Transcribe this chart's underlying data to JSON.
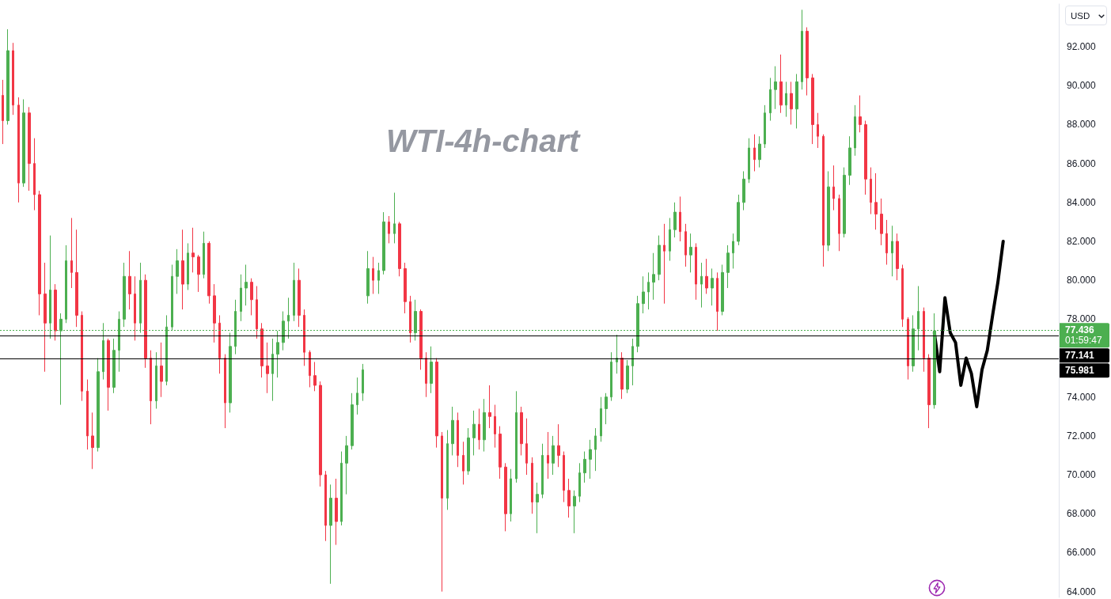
{
  "chart_data": {
    "type": "candlestick",
    "title": "WTI-4h-chart",
    "ylabel": "USD",
    "categories": [
      null,
      null,
      null,
      null,
      null,
      null,
      null,
      null,
      null,
      null,
      null,
      null,
      null,
      null,
      null,
      null,
      null,
      null,
      null,
      null,
      null,
      null,
      null,
      null,
      null,
      null,
      null,
      null,
      null,
      null,
      null,
      null,
      null,
      null,
      null,
      null,
      null,
      null,
      null,
      null,
      null,
      null,
      null,
      null,
      null,
      null,
      null,
      null,
      null,
      null,
      null,
      null,
      null,
      null,
      null,
      null,
      null,
      null,
      null,
      null,
      null,
      null,
      null,
      null,
      null,
      null,
      null,
      null,
      null,
      null,
      null,
      null,
      null,
      null,
      null,
      null,
      null,
      null,
      null,
      null,
      null,
      null,
      null,
      null,
      null,
      null,
      null,
      null,
      null,
      null,
      null,
      null,
      null,
      null,
      null,
      null,
      null,
      null,
      null,
      null,
      null,
      null,
      null,
      null,
      null,
      null,
      null,
      null,
      null,
      null,
      null,
      null,
      null,
      null,
      null,
      null,
      null,
      null,
      null,
      null,
      null,
      null,
      null,
      null,
      null,
      null,
      null,
      null,
      null,
      null,
      null,
      null,
      null,
      null,
      null,
      null,
      null,
      null,
      null,
      null,
      null,
      null,
      null,
      null,
      null,
      null,
      null,
      null,
      null,
      null,
      null,
      null,
      null,
      null,
      null,
      null,
      null,
      null,
      null,
      null,
      null,
      null,
      null,
      null,
      null,
      null,
      null,
      null,
      null,
      null,
      null,
      null,
      null,
      null,
      null,
      null,
      null,
      null,
      null,
      null,
      null,
      null,
      null,
      null,
      null,
      null,
      null,
      null,
      null,
      null,
      null,
      null,
      null,
      null,
      null,
      null,
      null,
      null,
      null,
      null
    ],
    "ohlc": [
      [
        89.5,
        90.3,
        87.0,
        88.2
      ],
      [
        88.2,
        92.9,
        88.0,
        91.8
      ],
      [
        91.8,
        92.2,
        88.5,
        89.0
      ],
      [
        89.0,
        89.4,
        84.0,
        85.0
      ],
      [
        85.0,
        89.3,
        84.8,
        88.6
      ],
      [
        88.6,
        88.9,
        84.6,
        86.0
      ],
      [
        86.0,
        87.3,
        83.6,
        84.4
      ],
      [
        84.4,
        84.6,
        78.2,
        79.3
      ],
      [
        79.3,
        80.9,
        75.3,
        77.8
      ],
      [
        77.8,
        82.3,
        77.0,
        79.5
      ],
      [
        79.5,
        79.8,
        76.9,
        77.4
      ],
      [
        77.4,
        78.3,
        73.6,
        78.0
      ],
      [
        78.0,
        81.8,
        77.8,
        81.0
      ],
      [
        81.0,
        83.2,
        79.6,
        80.4
      ],
      [
        80.4,
        82.6,
        77.6,
        78.2
      ],
      [
        78.2,
        78.4,
        73.8,
        74.3
      ],
      [
        74.3,
        74.9,
        71.3,
        72.0
      ],
      [
        72.0,
        73.2,
        70.3,
        71.4
      ],
      [
        71.4,
        76.0,
        71.2,
        75.3
      ],
      [
        75.3,
        77.8,
        74.9,
        76.9
      ],
      [
        76.9,
        77.0,
        73.3,
        74.5
      ],
      [
        74.5,
        77.0,
        74.2,
        76.4
      ],
      [
        76.4,
        78.4,
        75.3,
        78.0
      ],
      [
        78.0,
        80.9,
        77.6,
        80.2
      ],
      [
        80.2,
        81.5,
        78.5,
        79.3
      ],
      [
        79.3,
        80.2,
        76.9,
        77.8
      ],
      [
        77.8,
        80.9,
        77.3,
        80.0
      ],
      [
        80.0,
        80.3,
        75.5,
        76.0
      ],
      [
        76.0,
        76.4,
        72.6,
        73.8
      ],
      [
        73.8,
        76.3,
        73.4,
        75.6
      ],
      [
        75.6,
        76.8,
        74.0,
        74.8
      ],
      [
        74.8,
        78.2,
        74.6,
        77.6
      ],
      [
        77.6,
        80.8,
        77.4,
        80.2
      ],
      [
        80.2,
        81.6,
        79.3,
        81.0
      ],
      [
        81.0,
        82.6,
        78.5,
        79.8
      ],
      [
        79.8,
        81.9,
        79.5,
        81.4
      ],
      [
        81.4,
        82.7,
        80.4,
        81.2
      ],
      [
        81.2,
        81.3,
        79.4,
        80.3
      ],
      [
        80.3,
        82.5,
        80.1,
        81.9
      ],
      [
        81.9,
        82.0,
        78.8,
        79.2
      ],
      [
        79.2,
        79.8,
        76.8,
        77.8
      ],
      [
        77.8,
        78.2,
        75.2,
        76.0
      ],
      [
        76.0,
        76.2,
        72.4,
        73.7
      ],
      [
        73.7,
        77.3,
        73.2,
        76.6
      ],
      [
        76.6,
        79.0,
        76.2,
        78.4
      ],
      [
        78.4,
        80.3,
        77.9,
        79.6
      ],
      [
        79.6,
        80.8,
        78.7,
        79.9
      ],
      [
        79.9,
        80.1,
        78.2,
        79.0
      ],
      [
        79.0,
        79.7,
        77.0,
        77.5
      ],
      [
        77.5,
        77.8,
        75.0,
        75.6
      ],
      [
        75.6,
        76.8,
        74.2,
        75.2
      ],
      [
        75.2,
        77.0,
        73.8,
        76.2
      ],
      [
        76.2,
        77.4,
        75.0,
        76.8
      ],
      [
        76.8,
        78.4,
        76.4,
        77.9
      ],
      [
        77.9,
        79.1,
        77.0,
        78.2
      ],
      [
        78.2,
        80.9,
        77.9,
        80.0
      ],
      [
        80.0,
        80.6,
        77.6,
        78.2
      ],
      [
        78.2,
        78.5,
        75.6,
        76.3
      ],
      [
        76.3,
        76.4,
        74.5,
        75.1
      ],
      [
        75.1,
        75.8,
        74.3,
        74.6
      ],
      [
        74.6,
        74.8,
        69.4,
        70.0
      ],
      [
        70.0,
        70.2,
        66.6,
        67.4
      ],
      [
        67.4,
        69.5,
        64.4,
        68.8
      ],
      [
        68.8,
        69.8,
        66.4,
        67.6
      ],
      [
        67.6,
        71.2,
        67.4,
        70.6
      ],
      [
        70.6,
        72.0,
        69.0,
        71.5
      ],
      [
        71.5,
        74.2,
        71.3,
        73.6
      ],
      [
        73.6,
        75.0,
        73.1,
        74.2
      ],
      [
        74.2,
        75.7,
        73.8,
        75.4
      ],
      [
        79.2,
        81.5,
        78.8,
        80.6
      ],
      [
        80.6,
        81.2,
        79.3,
        80.0
      ],
      [
        80.0,
        80.9,
        79.3,
        80.5
      ],
      [
        80.5,
        83.5,
        80.3,
        83.0
      ],
      [
        83.0,
        83.3,
        81.9,
        82.4
      ],
      [
        82.4,
        84.5,
        81.9,
        82.9
      ],
      [
        82.9,
        83.0,
        80.2,
        80.6
      ],
      [
        80.6,
        80.9,
        78.3,
        78.9
      ],
      [
        78.9,
        79.2,
        76.8,
        77.3
      ],
      [
        77.3,
        79.0,
        76.9,
        78.4
      ],
      [
        78.4,
        78.5,
        75.4,
        76.0
      ],
      [
        76.0,
        76.3,
        74.0,
        74.7
      ],
      [
        74.7,
        76.6,
        74.2,
        75.8
      ],
      [
        75.8,
        76.0,
        71.4,
        72.0
      ],
      [
        72.0,
        72.2,
        64.0,
        68.8
      ],
      [
        68.8,
        72.3,
        68.2,
        71.6
      ],
      [
        71.6,
        73.5,
        71.0,
        72.8
      ],
      [
        72.8,
        73.2,
        70.4,
        71.0
      ],
      [
        71.0,
        71.7,
        69.5,
        70.2
      ],
      [
        70.2,
        72.4,
        70.0,
        71.9
      ],
      [
        71.9,
        73.3,
        71.0,
        72.6
      ],
      [
        72.6,
        73.4,
        71.3,
        71.8
      ],
      [
        71.8,
        73.9,
        71.2,
        73.2
      ],
      [
        73.2,
        74.6,
        72.4,
        73.0
      ],
      [
        73.0,
        73.6,
        71.4,
        72.1
      ],
      [
        72.1,
        72.5,
        69.8,
        70.4
      ],
      [
        70.4,
        70.6,
        67.1,
        68.0
      ],
      [
        68.0,
        70.3,
        67.6,
        69.8
      ],
      [
        69.8,
        74.3,
        69.6,
        73.2
      ],
      [
        73.2,
        73.5,
        71.0,
        71.6
      ],
      [
        71.6,
        72.9,
        70.0,
        70.6
      ],
      [
        70.6,
        70.9,
        68.0,
        68.6
      ],
      [
        68.6,
        69.6,
        67.0,
        69.0
      ],
      [
        69.0,
        71.6,
        68.8,
        71.0
      ],
      [
        71.0,
        72.2,
        69.8,
        70.6
      ],
      [
        70.6,
        72.0,
        70.0,
        71.5
      ],
      [
        71.5,
        72.6,
        70.4,
        71.0
      ],
      [
        71.0,
        71.2,
        68.6,
        69.2
      ],
      [
        69.2,
        69.8,
        67.8,
        68.4
      ],
      [
        68.4,
        69.2,
        67.0,
        68.9
      ],
      [
        68.9,
        70.6,
        68.6,
        70.1
      ],
      [
        70.1,
        71.2,
        69.6,
        70.8
      ],
      [
        70.8,
        71.8,
        69.8,
        71.3
      ],
      [
        71.3,
        72.4,
        70.2,
        72.0
      ],
      [
        72.0,
        74.0,
        71.7,
        73.4
      ],
      [
        73.4,
        74.2,
        72.6,
        74.0
      ],
      [
        74.0,
        76.3,
        73.8,
        75.8
      ],
      [
        75.8,
        77.2,
        75.2,
        76.0
      ],
      [
        76.0,
        76.3,
        73.9,
        74.4
      ],
      [
        74.4,
        75.9,
        74.2,
        75.6
      ],
      [
        75.6,
        77.0,
        74.6,
        76.6
      ],
      [
        76.6,
        79.2,
        76.3,
        78.8
      ],
      [
        78.8,
        80.2,
        78.3,
        79.4
      ],
      [
        79.4,
        80.4,
        78.5,
        79.9
      ],
      [
        79.9,
        81.4,
        79.0,
        80.3
      ],
      [
        80.3,
        82.3,
        80.0,
        81.8
      ],
      [
        81.8,
        82.9,
        78.8,
        81.5
      ],
      [
        81.5,
        83.2,
        81.0,
        82.6
      ],
      [
        82.6,
        84.0,
        82.2,
        83.5
      ],
      [
        83.5,
        84.3,
        82.0,
        82.5
      ],
      [
        82.5,
        82.9,
        80.7,
        81.3
      ],
      [
        81.3,
        82.4,
        80.4,
        81.7
      ],
      [
        81.7,
        81.9,
        79.0,
        79.8
      ],
      [
        79.8,
        80.9,
        78.6,
        80.2
      ],
      [
        80.2,
        81.1,
        79.3,
        79.6
      ],
      [
        79.6,
        80.6,
        78.7,
        80.1
      ],
      [
        80.1,
        80.4,
        77.4,
        78.4
      ],
      [
        78.4,
        80.8,
        78.2,
        80.4
      ],
      [
        80.4,
        81.8,
        79.6,
        81.4
      ],
      [
        81.4,
        82.4,
        80.6,
        82.0
      ],
      [
        82.0,
        84.4,
        81.8,
        84.0
      ],
      [
        84.0,
        85.6,
        83.6,
        85.2
      ],
      [
        85.2,
        87.3,
        85.0,
        86.8
      ],
      [
        86.8,
        87.5,
        85.6,
        86.2
      ],
      [
        86.2,
        87.4,
        85.8,
        87.0
      ],
      [
        87.0,
        89.0,
        86.8,
        88.6
      ],
      [
        88.6,
        90.4,
        88.2,
        89.8
      ],
      [
        89.8,
        91.0,
        88.8,
        90.2
      ],
      [
        90.2,
        91.6,
        88.6,
        89.0
      ],
      [
        89.0,
        90.2,
        88.4,
        89.6
      ],
      [
        89.6,
        90.2,
        88.0,
        88.8
      ],
      [
        88.8,
        90.6,
        87.8,
        90.2
      ],
      [
        90.2,
        93.9,
        89.8,
        92.8
      ],
      [
        92.8,
        93.0,
        89.5,
        90.4
      ],
      [
        90.4,
        90.6,
        87.0,
        88.0
      ],
      [
        88.0,
        88.6,
        86.8,
        87.4
      ],
      [
        87.4,
        87.5,
        80.7,
        81.8
      ],
      [
        81.8,
        85.6,
        81.5,
        84.8
      ],
      [
        84.8,
        85.9,
        83.6,
        84.2
      ],
      [
        84.2,
        84.4,
        81.5,
        82.4
      ],
      [
        82.4,
        85.8,
        82.2,
        85.4
      ],
      [
        85.4,
        87.4,
        84.9,
        86.8
      ],
      [
        86.8,
        89.0,
        86.4,
        88.4
      ],
      [
        88.4,
        89.5,
        87.6,
        88.0
      ],
      [
        88.0,
        88.2,
        84.4,
        85.2
      ],
      [
        85.2,
        85.8,
        83.4,
        84.0
      ],
      [
        84.0,
        85.5,
        82.6,
        83.4
      ],
      [
        83.4,
        84.2,
        81.8,
        82.4
      ],
      [
        82.4,
        83.1,
        80.8,
        81.4
      ],
      [
        81.4,
        82.8,
        80.2,
        82.0
      ],
      [
        82.0,
        82.4,
        80.0,
        80.6
      ],
      [
        80.6,
        80.8,
        77.6,
        78.0
      ],
      [
        78.0,
        78.1,
        74.9,
        75.6
      ],
      [
        75.6,
        78.2,
        75.3,
        77.5
      ],
      [
        77.5,
        79.7,
        76.4,
        78.4
      ],
      [
        78.4,
        78.6,
        75.3,
        76.0
      ],
      [
        76.0,
        76.2,
        72.4,
        73.6
      ],
      [
        73.6,
        78.3,
        73.4,
        77.4
      ],
      null,
      null,
      null,
      null,
      null,
      null,
      null,
      null,
      null,
      null,
      null,
      null,
      null,
      null,
      null,
      null,
      null,
      null,
      null,
      null,
      null,
      null,
      null
    ],
    "colors": [
      "#f23645",
      "#4caf50",
      "#f23645",
      "#f23645",
      "#4caf50",
      "#f23645",
      "#f23645",
      "#f23645",
      "#f23645",
      "#4caf50",
      "#f23645",
      "#4caf50",
      "#4caf50",
      "#f23645",
      "#f23645",
      "#f23645",
      "#f23645",
      "#f23645",
      "#4caf50",
      "#4caf50",
      "#f23645",
      "#4caf50",
      "#4caf50",
      "#4caf50",
      "#f23645",
      "#f23645",
      "#4caf50",
      "#f23645",
      "#f23645",
      "#4caf50",
      "#f23645",
      "#4caf50",
      "#4caf50",
      "#4caf50",
      "#f23645",
      "#4caf50",
      "#f23645",
      "#f23645",
      "#4caf50",
      "#f23645",
      "#f23645",
      "#f23645",
      "#f23645",
      "#4caf50",
      "#4caf50",
      "#4caf50",
      "#4caf50",
      "#f23645",
      "#f23645",
      "#f23645",
      "#f23645",
      "#4caf50",
      "#4caf50",
      "#4caf50",
      "#4caf50",
      "#4caf50",
      "#f23645",
      "#f23645",
      "#f23645",
      "#f23645",
      "#f23645",
      "#f23645",
      "#4caf50",
      "#f23645",
      "#4caf50",
      "#4caf50",
      "#4caf50",
      "#4caf50",
      "#4caf50",
      "#4caf50",
      "#f23645",
      "#4caf50",
      "#4caf50",
      "#f23645",
      "#4caf50",
      "#f23645",
      "#f23645",
      "#f23645",
      "#4caf50",
      "#f23645",
      "#f23645",
      "#4caf50",
      "#f23645",
      "#f23645",
      "#4caf50",
      "#4caf50",
      "#f23645",
      "#f23645",
      "#4caf50",
      "#4caf50",
      "#f23645",
      "#4caf50",
      "#f23645",
      "#f23645",
      "#f23645",
      "#f23645",
      "#4caf50",
      "#4caf50",
      "#f23645",
      "#f23645",
      "#f23645",
      "#4caf50",
      "#4caf50",
      "#f23645",
      "#4caf50",
      "#f23645",
      "#f23645",
      "#f23645",
      "#4caf50",
      "#4caf50",
      "#4caf50",
      "#4caf50",
      "#4caf50",
      "#4caf50",
      "#4caf50",
      "#4caf50",
      "#4caf50",
      "#f23645",
      "#4caf50",
      "#4caf50",
      "#4caf50",
      "#4caf50",
      "#4caf50",
      "#4caf50",
      "#4caf50",
      "#f23645",
      "#4caf50",
      "#4caf50",
      "#f23645",
      "#f23645",
      "#4caf50",
      "#f23645",
      "#4caf50",
      "#f23645",
      "#4caf50",
      "#f23645",
      "#4caf50",
      "#4caf50",
      "#4caf50",
      "#4caf50",
      "#4caf50",
      "#4caf50",
      "#f23645",
      "#4caf50",
      "#4caf50",
      "#4caf50",
      "#4caf50",
      "#f23645",
      "#4caf50",
      "#f23645",
      "#4caf50",
      "#4caf50",
      "#f23645",
      "#f23645",
      "#f23645",
      "#f23645",
      "#4caf50",
      "#f23645",
      "#f23645",
      "#4caf50",
      "#4caf50",
      "#4caf50",
      "#f23645",
      "#f23645",
      "#f23645",
      "#f23645",
      "#f23645",
      "#f23645",
      "#4caf50",
      "#f23645",
      "#f23645",
      "#f23645",
      "#4caf50",
      "#4caf50",
      "#f23645",
      "#f23645",
      "#4caf50",
      null,
      null,
      null,
      null,
      null,
      null,
      null,
      null,
      null,
      null,
      null,
      null,
      null,
      null,
      null,
      null,
      null,
      null,
      null,
      null,
      null,
      null,
      null
    ],
    "series": [
      {
        "type": "line",
        "color": "#000000",
        "values": [
          null,
          null,
          null,
          null,
          null,
          null,
          null,
          null,
          null,
          null,
          null,
          null,
          null,
          null,
          null,
          null,
          null,
          null,
          null,
          null,
          null,
          null,
          null,
          null,
          null,
          null,
          null,
          null,
          null,
          null,
          null,
          null,
          null,
          null,
          null,
          null,
          null,
          null,
          null,
          null,
          null,
          null,
          null,
          null,
          null,
          null,
          null,
          null,
          null,
          null,
          null,
          null,
          null,
          null,
          null,
          null,
          null,
          null,
          null,
          null,
          null,
          null,
          null,
          null,
          null,
          null,
          null,
          null,
          null,
          null,
          null,
          null,
          null,
          null,
          null,
          null,
          null,
          null,
          null,
          null,
          null,
          null,
          null,
          null,
          null,
          null,
          null,
          null,
          null,
          null,
          null,
          null,
          null,
          null,
          null,
          null,
          null,
          null,
          null,
          null,
          null,
          null,
          null,
          null,
          null,
          null,
          null,
          null,
          null,
          null,
          null,
          null,
          null,
          null,
          null,
          null,
          null,
          null,
          null,
          null,
          null,
          null,
          null,
          null,
          null,
          null,
          null,
          null,
          null,
          null,
          null,
          null,
          null,
          null,
          null,
          null,
          null,
          null,
          null,
          null,
          null,
          null,
          null,
          null,
          null,
          null,
          null,
          null,
          null,
          null,
          null,
          null,
          null,
          null,
          null,
          null,
          null,
          null,
          null,
          null,
          null,
          null,
          null,
          null,
          null,
          null,
          null,
          null,
          null,
          null,
          null,
          null,
          null,
          null,
          null,
          null,
          77.3,
          75.3,
          79.1,
          77.3,
          76.8,
          74.6,
          76.0,
          75.2,
          73.5,
          75.4,
          76.4,
          78.2,
          79.9,
          82.0,
          null,
          null,
          null,
          null,
          null,
          null,
          null,
          null,
          null,
          null
        ]
      }
    ],
    "ylim": [
      63.7,
      94.2
    ],
    "yticks": [
      {
        "value": 64,
        "label": "64.000"
      },
      {
        "value": 66,
        "label": "66.000"
      },
      {
        "value": 68,
        "label": "68.000"
      },
      {
        "value": 70,
        "label": "70.000"
      },
      {
        "value": 72,
        "label": "72.000"
      },
      {
        "value": 74,
        "label": "74.000"
      },
      {
        "value": 78,
        "label": "78.000"
      },
      {
        "value": 80,
        "label": "80.000"
      },
      {
        "value": 82,
        "label": "82.000"
      },
      {
        "value": 84,
        "label": "84.000"
      },
      {
        "value": 86,
        "label": "86.000"
      },
      {
        "value": 88,
        "label": "88.000"
      },
      {
        "value": 90,
        "label": "90.000"
      },
      {
        "value": 92,
        "label": "92.000"
      }
    ],
    "ref_lines": [
      {
        "axis": "y",
        "value": 77.436,
        "label": "77.436",
        "color": "#4caf50",
        "line_style": "dotted"
      },
      {
        "axis": "y",
        "value": 77.141,
        "label": "77.141",
        "color": "#000000",
        "line_style": "solid"
      },
      {
        "axis": "y",
        "value": 75.981,
        "label": "75.981",
        "color": "#000000",
        "line_style": "solid"
      }
    ],
    "annotations": [
      "01:59:47"
    ],
    "tick_labels": "y",
    "grid": false
  }
}
